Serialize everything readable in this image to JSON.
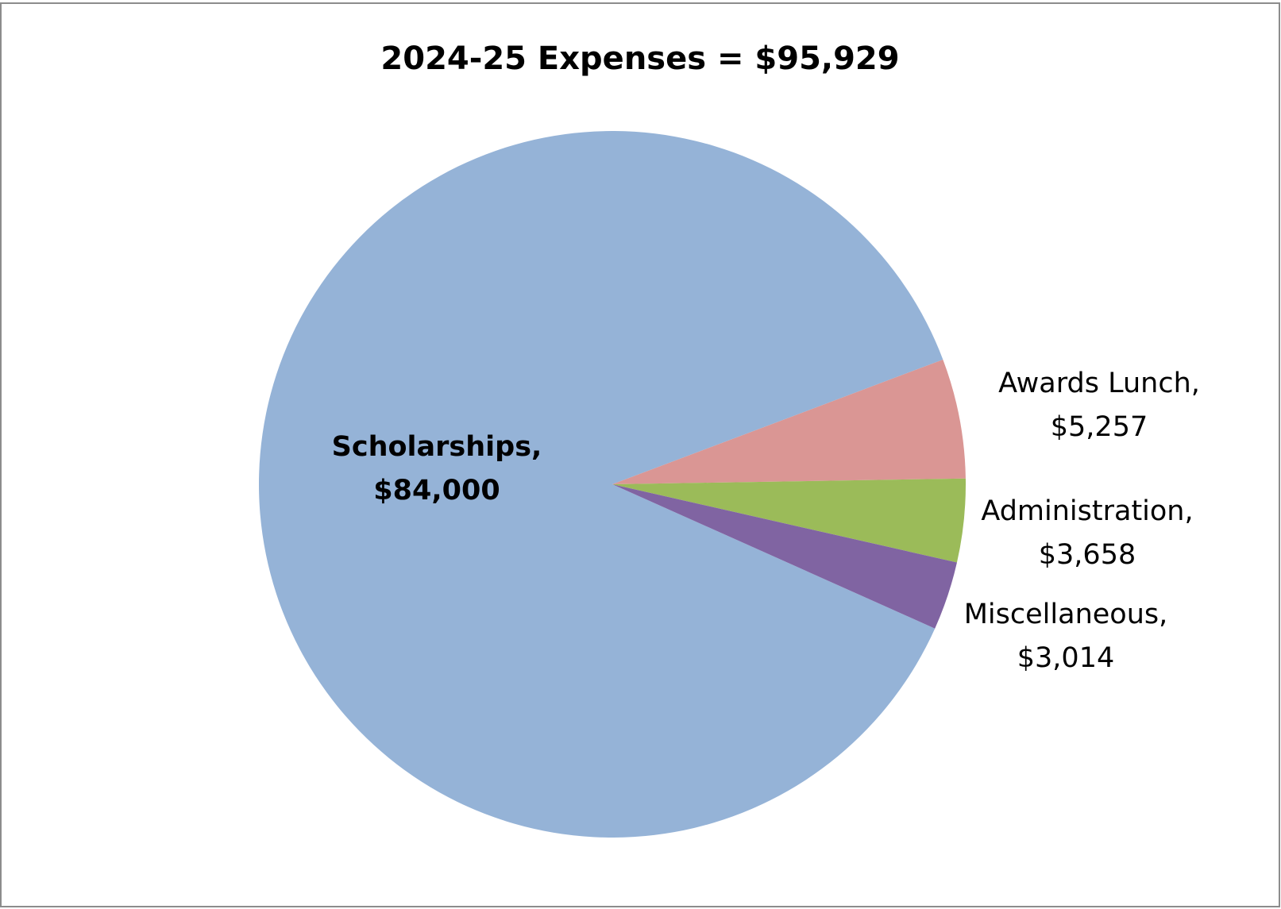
{
  "chart_data": {
    "type": "pie",
    "title": "2024-25 Expenses = $95,929",
    "categories": [
      "Scholarships,",
      "Awards Lunch,",
      "Administration,",
      "Miscellaneous,"
    ],
    "values": [
      84000,
      5257,
      3658,
      3014
    ],
    "value_labels": [
      "$84,000",
      "$5,257",
      "$3,658",
      "$3,014"
    ],
    "colors": [
      "#95b3d7",
      "#da9694",
      "#9bbb59",
      "#8064a2"
    ]
  }
}
